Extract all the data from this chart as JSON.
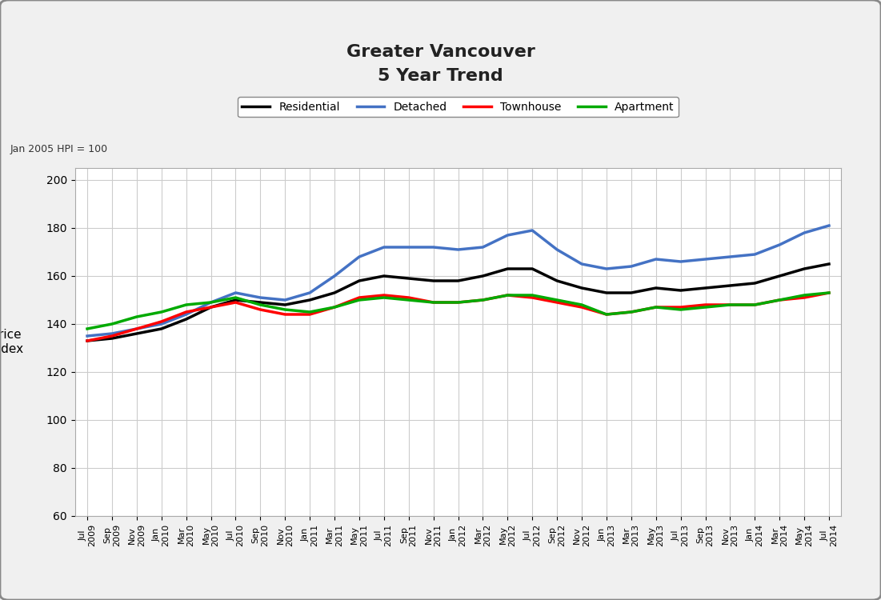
{
  "title_line1": "Greater Vancouver",
  "title_line2": "5 Year Trend",
  "ylabel": "Price\nIndex",
  "note": "Jan 2005 HPI = 100",
  "ylim": [
    60,
    205
  ],
  "yticks": [
    60,
    80,
    100,
    120,
    140,
    160,
    180,
    200
  ],
  "background_color": "#f0f0f0",
  "plot_bg_color": "#ffffff",
  "grid_color": "#cccccc",
  "x_labels": [
    "Jul\n2009",
    "Sep\n2009",
    "Nov\n2009",
    "Jan\n2010",
    "Mar\n2010",
    "May\n2010",
    "Jul\n2010",
    "Sep\n2010",
    "Nov\n2010",
    "Jan\n2011",
    "Mar\n2011",
    "May\n2011",
    "Jul\n2011",
    "Sep\n2011",
    "Nov\n2011",
    "Jan\n2012",
    "Mar\n2012",
    "May\n2012",
    "Jul\n2012",
    "Sep\n2012",
    "Nov\n2012",
    "Jan\n2013",
    "Mar\n2013",
    "May\n2013",
    "Jul\n2013",
    "Sep\n2013",
    "Nov\n2013",
    "Jan\n2014",
    "Mar\n2014",
    "May\n2014",
    "Jul\n2014"
  ],
  "series": {
    "Residential": {
      "color": "#000000",
      "linewidth": 2.5,
      "values": [
        133,
        134,
        136,
        138,
        142,
        147,
        150,
        149,
        148,
        150,
        153,
        158,
        160,
        159,
        158,
        158,
        160,
        163,
        163,
        158,
        155,
        153,
        153,
        155,
        154,
        155,
        156,
        157,
        160,
        163,
        165
      ]
    },
    "Detached": {
      "color": "#4472c4",
      "linewidth": 2.5,
      "values": [
        135,
        136,
        138,
        140,
        144,
        149,
        153,
        151,
        150,
        153,
        160,
        168,
        172,
        172,
        172,
        171,
        172,
        177,
        179,
        171,
        165,
        163,
        164,
        167,
        166,
        167,
        168,
        169,
        173,
        178,
        181
      ]
    },
    "Townhouse": {
      "color": "#ff0000",
      "linewidth": 2.5,
      "values": [
        133,
        135,
        138,
        141,
        145,
        147,
        149,
        146,
        144,
        144,
        147,
        151,
        152,
        151,
        149,
        149,
        150,
        152,
        151,
        149,
        147,
        144,
        145,
        147,
        147,
        148,
        148,
        148,
        150,
        151,
        153
      ]
    },
    "Apartment": {
      "color": "#00aa00",
      "linewidth": 2.5,
      "values": [
        138,
        140,
        143,
        145,
        148,
        149,
        151,
        148,
        146,
        145,
        147,
        150,
        151,
        150,
        149,
        149,
        150,
        152,
        152,
        150,
        148,
        144,
        145,
        147,
        146,
        147,
        148,
        148,
        150,
        152,
        153
      ]
    }
  }
}
